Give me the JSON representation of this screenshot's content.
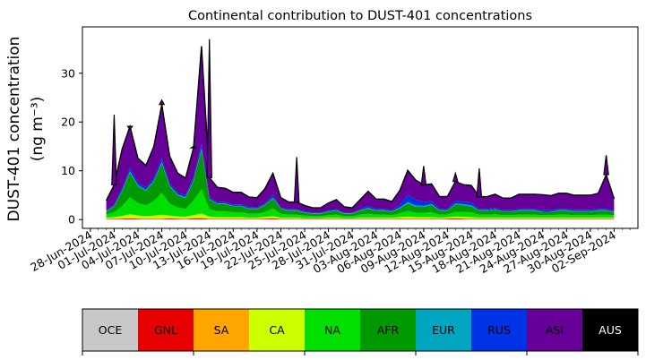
{
  "chart_data": {
    "type": "area",
    "title": "Continental contribution to DUST-401 concentrations",
    "ylabel": "DUST-401 concentration",
    "ylabel_unit": "(ng m⁻³)",
    "xlabel": "",
    "ylim": [
      -1.8,
      39.5
    ],
    "yticks": [
      0,
      10,
      20,
      30
    ],
    "x_tick_labels": [
      "28-Jun-2024",
      "01-Jul-2024",
      "04-Jul-2024",
      "07-Jul-2024",
      "10-Jul-2024",
      "13-Jul-2024",
      "16-Jul-2024",
      "19-Jul-2024",
      "22-Jul-2024",
      "25-Jul-2024",
      "28-Jul-2024",
      "31-Jul-2024",
      "03-Aug-2024",
      "06-Aug-2024",
      "09-Aug-2024",
      "12-Aug-2024",
      "15-Aug-2024",
      "18-Aug-2024",
      "21-Aug-2024",
      "24-Aug-2024",
      "27-Aug-2024",
      "30-Aug-2024",
      "02-Sep-2024"
    ],
    "xlim": [
      "2024-06-27",
      "2024-09-05"
    ],
    "grid": false,
    "dates": [
      "2024-06-30",
      "2024-07-01",
      "2024-07-02",
      "2024-07-03",
      "2024-07-04",
      "2024-07-05",
      "2024-07-06",
      "2024-07-07",
      "2024-07-08",
      "2024-07-09",
      "2024-07-10",
      "2024-07-11",
      "2024-07-12",
      "2024-07-13",
      "2024-07-14",
      "2024-07-15",
      "2024-07-16",
      "2024-07-17",
      "2024-07-18",
      "2024-07-19",
      "2024-07-20",
      "2024-07-21",
      "2024-07-22",
      "2024-07-23",
      "2024-07-24",
      "2024-07-25",
      "2024-07-26",
      "2024-07-27",
      "2024-07-28",
      "2024-07-29",
      "2024-07-30",
      "2024-07-31",
      "2024-08-01",
      "2024-08-02",
      "2024-08-03",
      "2024-08-04",
      "2024-08-05",
      "2024-08-06",
      "2024-08-07",
      "2024-08-08",
      "2024-08-09",
      "2024-08-10",
      "2024-08-11",
      "2024-08-12",
      "2024-08-13",
      "2024-08-14",
      "2024-08-15",
      "2024-08-16",
      "2024-08-17",
      "2024-08-18",
      "2024-08-19",
      "2024-08-20",
      "2024-08-21",
      "2024-08-22",
      "2024-08-23",
      "2024-08-24",
      "2024-08-25",
      "2024-08-26",
      "2024-08-27",
      "2024-08-28",
      "2024-08-29",
      "2024-08-30",
      "2024-08-31",
      "2024-09-01",
      "2024-09-02"
    ],
    "series": [
      {
        "name": "OCE",
        "color": "#c8c8c8",
        "values": [
          0.05,
          0.05,
          0.05,
          0.05,
          0.05,
          0.05,
          0.05,
          0.05,
          0.05,
          0.05,
          0.05,
          0.05,
          0.05,
          0.05,
          0.05,
          0.05,
          0.05,
          0.05,
          0.05,
          0.05,
          0.05,
          0.05,
          0.05,
          0.05,
          0.05,
          0.05,
          0.05,
          0.05,
          0.05,
          0.05,
          0.05,
          0.05,
          0.05,
          0.05,
          0.05,
          0.05,
          0.05,
          0.05,
          0.05,
          0.05,
          0.05,
          0.05,
          0.05,
          0.05,
          0.05,
          0.05,
          0.05,
          0.05,
          0.05,
          0.05,
          0.05,
          0.05,
          0.05,
          0.05,
          0.05,
          0.05,
          0.05,
          0.05,
          0.05,
          0.05,
          0.05,
          0.05,
          0.05,
          0.05,
          0.05
        ]
      },
      {
        "name": "GNL",
        "color": "#e60000",
        "values": [
          0.1,
          0.1,
          0.15,
          0.2,
          0.15,
          0.1,
          0.1,
          0.1,
          0.2,
          0.15,
          0.1,
          0.2,
          0.25,
          0.1,
          0.1,
          0.1,
          0.1,
          0.1,
          0.1,
          0.1,
          0.15,
          0.2,
          0.1,
          0.1,
          0.1,
          0.1,
          0.1,
          0.1,
          0.1,
          0.1,
          0.1,
          0.1,
          0.1,
          0.1,
          0.1,
          0.1,
          0.1,
          0.1,
          0.1,
          0.1,
          0.1,
          0.1,
          0.1,
          0.15,
          0.2,
          0.15,
          0.1,
          0.1,
          0.1,
          0.1,
          0.1,
          0.1,
          0.1,
          0.1,
          0.1,
          0.1,
          0.1,
          0.1,
          0.1,
          0.1,
          0.1,
          0.1,
          0.1,
          0.1,
          0.1
        ]
      },
      {
        "name": "SA",
        "color": "#ffa500",
        "values": [
          0.05,
          0.05,
          0.05,
          0.05,
          0.05,
          0.05,
          0.05,
          0.05,
          0.05,
          0.05,
          0.05,
          0.05,
          0.05,
          0.05,
          0.05,
          0.05,
          0.05,
          0.05,
          0.05,
          0.05,
          0.05,
          0.05,
          0.05,
          0.05,
          0.05,
          0.05,
          0.05,
          0.05,
          0.05,
          0.05,
          0.05,
          0.05,
          0.05,
          0.05,
          0.05,
          0.05,
          0.05,
          0.05,
          0.05,
          0.05,
          0.05,
          0.05,
          0.05,
          0.05,
          0.05,
          0.05,
          0.05,
          0.05,
          0.05,
          0.05,
          0.05,
          0.05,
          0.05,
          0.05,
          0.05,
          0.05,
          0.05,
          0.05,
          0.05,
          0.05,
          0.05,
          0.05,
          0.05,
          0.05,
          0.05
        ]
      },
      {
        "name": "CA",
        "color": "#ccff00",
        "values": [
          0.2,
          0.3,
          0.5,
          0.8,
          0.6,
          0.5,
          0.6,
          0.8,
          0.5,
          0.4,
          0.4,
          0.6,
          0.9,
          0.4,
          0.3,
          0.3,
          0.3,
          0.3,
          0.2,
          0.2,
          0.3,
          0.4,
          0.2,
          0.2,
          0.2,
          0.1,
          0.1,
          0.1,
          0.2,
          0.2,
          0.1,
          0.1,
          0.2,
          0.2,
          0.2,
          0.2,
          0.2,
          0.3,
          0.4,
          0.3,
          0.3,
          0.3,
          0.2,
          0.2,
          0.3,
          0.3,
          0.3,
          0.2,
          0.2,
          0.2,
          0.2,
          0.2,
          0.2,
          0.2,
          0.2,
          0.2,
          0.2,
          0.2,
          0.2,
          0.2,
          0.2,
          0.2,
          0.2,
          0.2,
          0.2
        ]
      },
      {
        "name": "NA",
        "color": "#00e000",
        "values": [
          0.6,
          1.0,
          2.0,
          3.5,
          2.5,
          2.2,
          3.0,
          4.5,
          2.5,
          1.8,
          1.6,
          3.0,
          5.0,
          1.5,
          1.2,
          1.2,
          1.0,
          1.0,
          0.8,
          0.8,
          1.0,
          1.6,
          0.8,
          0.6,
          0.6,
          0.5,
          0.4,
          0.4,
          0.5,
          0.6,
          0.4,
          0.4,
          0.6,
          0.8,
          0.6,
          0.6,
          0.5,
          0.8,
          1.2,
          0.9,
          0.9,
          1.0,
          0.6,
          0.6,
          1.0,
          1.0,
          1.0,
          0.6,
          0.6,
          0.7,
          0.5,
          0.5,
          0.6,
          0.6,
          0.6,
          0.5,
          0.5,
          0.6,
          0.6,
          0.5,
          0.5,
          0.5,
          0.6,
          0.6,
          0.5
        ]
      },
      {
        "name": "AFR",
        "color": "#009a00",
        "values": [
          0.6,
          1.2,
          3.0,
          5.0,
          3.5,
          3.0,
          4.0,
          6.0,
          3.5,
          2.5,
          2.2,
          4.0,
          8.0,
          2.0,
          1.5,
          1.5,
          1.2,
          1.2,
          1.0,
          1.0,
          1.4,
          2.0,
          1.0,
          0.8,
          0.8,
          0.6,
          0.5,
          0.5,
          0.7,
          0.8,
          0.5,
          0.5,
          0.8,
          1.0,
          0.8,
          0.8,
          0.7,
          1.0,
          1.5,
          1.2,
          1.2,
          1.5,
          0.8,
          0.8,
          1.5,
          1.4,
          1.2,
          0.8,
          0.8,
          0.9,
          0.7,
          0.7,
          0.8,
          0.8,
          0.8,
          0.6,
          0.6,
          0.8,
          0.8,
          0.7,
          0.7,
          0.7,
          0.8,
          0.8,
          0.6
        ]
      },
      {
        "name": "EUR",
        "color": "#00a5c0",
        "values": [
          0.1,
          0.1,
          0.2,
          0.3,
          0.2,
          0.2,
          0.2,
          0.3,
          0.2,
          0.2,
          0.2,
          0.2,
          0.3,
          0.1,
          0.1,
          0.1,
          0.1,
          0.1,
          0.1,
          0.1,
          0.1,
          0.2,
          0.1,
          0.1,
          0.1,
          0.1,
          0.1,
          0.1,
          0.1,
          0.1,
          0.1,
          0.1,
          0.1,
          0.2,
          0.1,
          0.1,
          0.1,
          0.2,
          0.3,
          0.3,
          0.2,
          0.2,
          0.1,
          0.1,
          0.2,
          0.2,
          0.2,
          0.1,
          0.1,
          0.1,
          0.1,
          0.1,
          0.1,
          0.1,
          0.1,
          0.1,
          0.1,
          0.1,
          0.1,
          0.1,
          0.1,
          0.1,
          0.1,
          0.1,
          0.1
        ]
      },
      {
        "name": "RUS",
        "color": "#0033e6",
        "values": [
          0.2,
          0.3,
          0.5,
          0.7,
          0.5,
          0.5,
          0.5,
          0.8,
          0.5,
          0.4,
          0.4,
          0.6,
          1.0,
          0.4,
          0.3,
          0.3,
          0.3,
          0.3,
          0.3,
          0.2,
          0.3,
          0.5,
          0.2,
          0.2,
          0.2,
          0.2,
          0.1,
          0.1,
          0.2,
          0.2,
          0.1,
          0.1,
          0.2,
          0.4,
          0.3,
          0.3,
          0.2,
          0.5,
          1.5,
          1.2,
          0.8,
          0.6,
          0.3,
          0.3,
          0.5,
          0.5,
          0.6,
          0.3,
          0.3,
          0.3,
          0.2,
          0.2,
          0.3,
          0.3,
          0.3,
          0.3,
          0.3,
          0.3,
          0.3,
          0.3,
          0.3,
          0.3,
          0.3,
          0.3,
          0.2
        ]
      },
      {
        "name": "ASI",
        "color": "#660099",
        "values": [
          2.0,
          4.0,
          8.0,
          8.5,
          5.0,
          4.5,
          6.5,
          11.0,
          5.5,
          4.0,
          3.5,
          6.0,
          20.0,
          4.0,
          3.0,
          2.8,
          2.5,
          2.5,
          2.0,
          2.0,
          3.0,
          4.5,
          2.0,
          1.5,
          1.5,
          1.2,
          1.0,
          1.0,
          1.5,
          2.0,
          1.2,
          1.0,
          2.0,
          3.0,
          2.0,
          2.0,
          1.8,
          3.0,
          5.0,
          4.0,
          3.5,
          3.5,
          2.5,
          2.5,
          4.0,
          3.5,
          3.5,
          2.5,
          2.5,
          2.8,
          2.5,
          2.5,
          3.0,
          3.0,
          3.0,
          3.2,
          3.0,
          3.2,
          3.2,
          3.0,
          3.0,
          3.0,
          3.2,
          7.0,
          2.5
        ]
      },
      {
        "name": "AUS",
        "color": "#000000",
        "values": [
          0.0,
          0.0,
          0.0,
          0.0,
          0.0,
          0.0,
          0.0,
          0.0,
          0.0,
          0.0,
          0.0,
          0.0,
          0.0,
          0.0,
          0.0,
          0.0,
          0.0,
          0.0,
          0.0,
          0.0,
          0.0,
          0.0,
          0.0,
          0.0,
          0.0,
          0.0,
          0.0,
          0.0,
          0.0,
          0.0,
          0.0,
          0.0,
          0.0,
          0.0,
          0.0,
          0.0,
          0.0,
          0.0,
          0.0,
          0.0,
          0.0,
          0.0,
          0.0,
          0.0,
          0.0,
          0.0,
          0.0,
          0.0,
          0.0,
          0.0,
          0.0,
          0.0,
          0.0,
          0.0,
          0.0,
          0.0,
          0.0,
          0.0,
          0.0,
          0.0,
          0.0,
          0.0,
          0.0,
          0.0,
          0.0
        ]
      }
    ],
    "total_peaks": [
      {
        "date": "2024-07-01",
        "value": 21.5
      },
      {
        "date": "2024-07-03",
        "value": 18.5
      },
      {
        "date": "2024-07-07",
        "value": 24.5
      },
      {
        "date": "2024-07-11",
        "value": 15.0
      },
      {
        "date": "2024-07-13",
        "value": 37.0
      },
      {
        "date": "2024-07-24",
        "value": 12.8
      },
      {
        "date": "2024-08-09",
        "value": 11.0
      },
      {
        "date": "2024-08-13",
        "value": 9.5
      },
      {
        "date": "2024-08-16",
        "value": 10.5
      },
      {
        "date": "2024-09-01",
        "value": 13.2
      }
    ],
    "legend_placement": "bottom colorbar",
    "legend_entries": [
      "OCE",
      "GNL",
      "SA",
      "CA",
      "NA",
      "AFR",
      "EUR",
      "RUS",
      "ASI",
      "AUS"
    ]
  }
}
